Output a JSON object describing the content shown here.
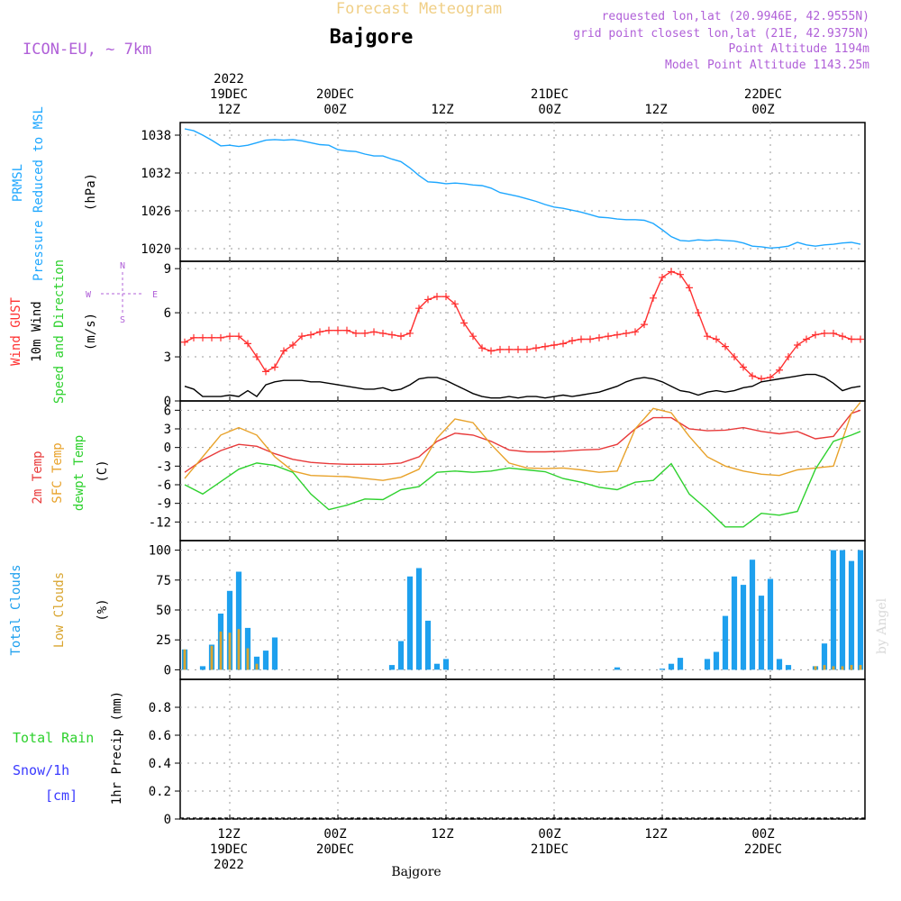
{
  "header": {
    "product": "Forecast Meteogram",
    "location": "Bajgore",
    "model": "ICON-EU, ~ 7km",
    "requested": "requested lon,lat (20.9946E, 42.9555N)",
    "grid_point": "grid point closest lon,lat (21E, 42.9375N)",
    "point_altitude": "Point Altitude 1194m",
    "model_altitude": "Model Point Altitude 1143.25m",
    "credit": "by Angel",
    "footer": "Bajgore"
  },
  "time_axis": {
    "year": "2022",
    "top": [
      {
        "t": 12,
        "hour": "12Z",
        "date": "19DEC",
        "year": "2022"
      },
      {
        "t": 24,
        "hour": "00Z",
        "date": "20DEC"
      },
      {
        "t": 36,
        "hour": "12Z"
      },
      {
        "t": 48,
        "hour": "00Z",
        "date": "21DEC"
      },
      {
        "t": 60,
        "hour": "12Z"
      },
      {
        "t": 72,
        "hour": "00Z",
        "date": "22DEC"
      }
    ],
    "bottom": [
      {
        "t": 12,
        "hour": "12Z",
        "date": "19DEC",
        "year": "2022"
      },
      {
        "t": 24,
        "hour": "00Z",
        "date": "20DEC"
      },
      {
        "t": 36,
        "hour": "12Z"
      },
      {
        "t": 48,
        "hour": "00Z",
        "date": "21DEC"
      },
      {
        "t": 60,
        "hour": "12Z"
      },
      {
        "t": 72,
        "hour": "00Z",
        "date": "22DEC"
      }
    ]
  },
  "chart_data": [
    {
      "type": "line",
      "panel": "pressure",
      "ylabel": [
        "PRMSL",
        "Pressure Reduced to MSL"
      ],
      "units": "(hPa)",
      "ylim": [
        1018,
        1040
      ],
      "yticks": [
        1020,
        1026,
        1032,
        1038
      ],
      "grid": true,
      "x_hours": [
        7,
        8,
        9,
        10,
        11,
        12,
        13,
        14,
        15,
        16,
        17,
        18,
        19,
        20,
        21,
        22,
        23,
        24,
        25,
        26,
        27,
        28,
        29,
        30,
        31,
        32,
        33,
        34,
        35,
        36,
        37,
        38,
        39,
        40,
        41,
        42,
        43,
        44,
        45,
        46,
        47,
        48,
        49,
        50,
        51,
        52,
        53,
        54,
        55,
        56,
        57,
        58,
        59,
        60,
        61,
        62,
        63,
        64,
        65,
        66,
        67,
        68,
        69,
        70,
        71,
        72,
        73,
        74,
        75,
        76,
        77,
        78,
        79,
        80,
        81,
        82
      ],
      "series": [
        {
          "color": "#1ea7ff",
          "values": [
            1039,
            1038.7,
            1038,
            1037.2,
            1036.3,
            1036.4,
            1036.2,
            1036.4,
            1036.8,
            1037.2,
            1037.3,
            1037.2,
            1037.3,
            1037.1,
            1036.8,
            1036.5,
            1036.4,
            1035.7,
            1035.5,
            1035.4,
            1035.0,
            1034.7,
            1034.7,
            1034.2,
            1033.8,
            1032.8,
            1031.6,
            1030.6,
            1030.5,
            1030.3,
            1030.4,
            1030.3,
            1030.1,
            1030.0,
            1029.6,
            1028.9,
            1028.6,
            1028.3,
            1027.9,
            1027.5,
            1027.0,
            1026.6,
            1026.4,
            1026.1,
            1025.8,
            1025.4,
            1025.0,
            1024.9,
            1024.7,
            1024.6,
            1024.6,
            1024.5,
            1024.0,
            1023.0,
            1021.9,
            1021.3,
            1021.2,
            1021.4,
            1021.3,
            1021.4,
            1021.3,
            1021.2,
            1020.9,
            1020.4,
            1020.3,
            1020.1,
            1020.2,
            1020.4,
            1021.0,
            1020.6,
            1020.4,
            1020.6,
            1020.7,
            1020.9,
            1021.0,
            1020.7
          ]
        }
      ]
    },
    {
      "type": "line",
      "panel": "wind",
      "ylabel": [
        "Wind GUST",
        "10m Wind",
        "Speed and Direction"
      ],
      "units": "(m/s)",
      "compass": [
        "N",
        "W",
        "E",
        "S"
      ],
      "ylim": [
        0,
        9.5
      ],
      "yticks": [
        0,
        3,
        6,
        9
      ],
      "grid": true,
      "x_hours": [
        7,
        8,
        9,
        10,
        11,
        12,
        13,
        14,
        15,
        16,
        17,
        18,
        19,
        20,
        21,
        22,
        23,
        24,
        25,
        26,
        27,
        28,
        29,
        30,
        31,
        32,
        33,
        34,
        35,
        36,
        37,
        38,
        39,
        40,
        41,
        42,
        43,
        44,
        45,
        46,
        47,
        48,
        49,
        50,
        51,
        52,
        53,
        54,
        55,
        56,
        57,
        58,
        59,
        60,
        61,
        62,
        63,
        64,
        65,
        66,
        67,
        68,
        69,
        70,
        71,
        72,
        73,
        74,
        75,
        76,
        77,
        78,
        79,
        80,
        81,
        82
      ],
      "series": [
        {
          "name": "Wind GUST",
          "color": "#ff3030",
          "marker": "+",
          "values": [
            4.0,
            4.3,
            4.3,
            4.3,
            4.3,
            4.4,
            4.4,
            3.9,
            3.0,
            2.0,
            2.3,
            3.4,
            3.8,
            4.4,
            4.5,
            4.7,
            4.8,
            4.8,
            4.8,
            4.6,
            4.6,
            4.7,
            4.6,
            4.5,
            4.4,
            4.6,
            6.3,
            6.9,
            7.1,
            7.1,
            6.6,
            5.3,
            4.4,
            3.6,
            3.4,
            3.5,
            3.5,
            3.5,
            3.5,
            3.6,
            3.7,
            3.8,
            3.9,
            4.1,
            4.2,
            4.2,
            4.3,
            4.4,
            4.5,
            4.6,
            4.7,
            5.2,
            7.0,
            8.4,
            8.8,
            8.6,
            7.7,
            6.0,
            4.4,
            4.2,
            3.7,
            3.0,
            2.3,
            1.7,
            1.5,
            1.6,
            2.1,
            3.0,
            3.8,
            4.2,
            4.5,
            4.6,
            4.6,
            4.4,
            4.2,
            4.2
          ]
        },
        {
          "name": "10m Wind",
          "color": "#000000",
          "values": [
            1.0,
            0.8,
            0.3,
            0.3,
            0.3,
            0.4,
            0.3,
            0.7,
            0.3,
            1.1,
            1.3,
            1.4,
            1.4,
            1.4,
            1.3,
            1.3,
            1.2,
            1.1,
            1.0,
            0.9,
            0.8,
            0.8,
            0.9,
            0.7,
            0.8,
            1.1,
            1.5,
            1.6,
            1.6,
            1.4,
            1.1,
            0.8,
            0.5,
            0.3,
            0.2,
            0.2,
            0.3,
            0.2,
            0.3,
            0.3,
            0.2,
            0.3,
            0.4,
            0.3,
            0.4,
            0.5,
            0.6,
            0.8,
            1.0,
            1.3,
            1.5,
            1.6,
            1.5,
            1.3,
            1.0,
            0.7,
            0.6,
            0.4,
            0.6,
            0.7,
            0.6,
            0.7,
            0.9,
            1.0,
            1.3,
            1.4,
            1.5,
            1.6,
            1.7,
            1.8,
            1.8,
            1.6,
            1.2,
            0.7,
            0.9,
            1.0
          ]
        }
      ]
    },
    {
      "type": "line",
      "panel": "temperature",
      "ylabel": [
        "2m Temp",
        "SFC Temp",
        "dewpt Temp"
      ],
      "units": "(C)",
      "ylim": [
        -15,
        7.5
      ],
      "yticks": [
        6,
        3,
        0,
        -3,
        -6,
        -9,
        -12
      ],
      "grid": true,
      "x_hours": [
        7,
        9,
        11,
        13,
        15,
        17,
        19,
        21,
        23,
        25,
        27,
        29,
        31,
        33,
        35,
        37,
        39,
        41,
        43,
        45,
        47,
        49,
        51,
        53,
        55,
        57,
        59,
        61,
        63,
        65,
        67,
        69,
        71,
        73,
        75,
        77,
        79,
        81,
        82
      ],
      "series": [
        {
          "name": "2m Temp",
          "color": "#e83a3a",
          "values": [
            -4.0,
            -2.0,
            -0.5,
            0.5,
            0.2,
            -1.0,
            -1.9,
            -2.4,
            -2.6,
            -2.7,
            -2.7,
            -2.7,
            -2.5,
            -1.5,
            1.0,
            2.3,
            2.0,
            1.0,
            -0.4,
            -0.7,
            -0.7,
            -0.6,
            -0.4,
            -0.3,
            0.5,
            3.0,
            4.8,
            4.8,
            3.0,
            2.7,
            2.8,
            3.2,
            2.6,
            2.2,
            2.6,
            1.4,
            1.8,
            5.5,
            6.0
          ]
        },
        {
          "name": "SFC Temp",
          "color": "#e8a22a",
          "values": [
            -5.0,
            -1.5,
            2.0,
            3.2,
            2.0,
            -1.5,
            -3.8,
            -4.5,
            -4.6,
            -4.7,
            -5.0,
            -5.3,
            -4.8,
            -3.5,
            1.5,
            4.6,
            4.0,
            0.5,
            -2.5,
            -3.3,
            -3.4,
            -3.3,
            -3.6,
            -4.0,
            -3.8,
            3.0,
            6.3,
            5.6,
            1.8,
            -1.5,
            -3.0,
            -3.8,
            -4.3,
            -4.5,
            -3.6,
            -3.3,
            -3.0,
            5.5,
            7.3
          ]
        },
        {
          "name": "dewpt Temp",
          "color": "#2ed12e",
          "values": [
            -6.0,
            -7.5,
            -5.5,
            -3.5,
            -2.5,
            -2.9,
            -4.0,
            -7.5,
            -10.0,
            -9.3,
            -8.3,
            -8.4,
            -6.8,
            -6.3,
            -4.0,
            -3.8,
            -4.0,
            -3.8,
            -3.3,
            -3.6,
            -3.9,
            -5.0,
            -5.6,
            -6.4,
            -6.8,
            -5.6,
            -5.3,
            -2.6,
            -7.5,
            -10.0,
            -12.8,
            -12.8,
            -10.6,
            -10.9,
            -10.3,
            -3.5,
            1.0,
            2.0,
            2.6
          ]
        }
      ]
    },
    {
      "type": "bar",
      "panel": "clouds",
      "ylabel": [
        "Total Clouds",
        "Low Clouds"
      ],
      "units": "(%)",
      "ylim": [
        -8,
        108
      ],
      "yticks": [
        0,
        25,
        50,
        75,
        100
      ],
      "grid": true,
      "x_hours": [
        7,
        8,
        9,
        10,
        11,
        12,
        13,
        14,
        15,
        16,
        17,
        18,
        19,
        20,
        21,
        22,
        23,
        24,
        25,
        26,
        27,
        28,
        29,
        30,
        31,
        32,
        33,
        34,
        35,
        36,
        37,
        38,
        39,
        40,
        41,
        42,
        43,
        44,
        45,
        46,
        47,
        48,
        49,
        50,
        51,
        52,
        53,
        54,
        55,
        56,
        57,
        58,
        59,
        60,
        61,
        62,
        63,
        64,
        65,
        66,
        67,
        68,
        69,
        70,
        71,
        72,
        73,
        74,
        75,
        76,
        77,
        78,
        79,
        80,
        81,
        82
      ],
      "series": [
        {
          "name": "Total Clouds",
          "color": "#1ea0ee",
          "values": [
            17,
            0,
            3,
            21,
            47,
            66,
            82,
            35,
            11,
            16,
            27,
            0,
            0,
            0,
            0,
            0,
            0,
            0,
            0,
            0,
            0,
            0,
            0,
            4,
            24,
            78,
            85,
            41,
            5,
            9,
            0,
            0,
            0,
            0,
            0,
            0,
            0,
            0,
            0,
            0,
            0,
            0,
            0,
            0,
            0,
            0,
            0,
            0,
            2,
            0,
            0,
            0,
            0,
            1,
            5,
            10,
            0,
            0,
            9,
            15,
            45,
            78,
            71,
            92,
            62,
            76,
            9,
            4,
            0,
            0,
            3,
            22,
            100,
            100,
            91,
            100
          ]
        },
        {
          "name": "Low Clouds",
          "color": "#d9a52f",
          "values": [
            17,
            0,
            0,
            20,
            32,
            31,
            34,
            18,
            5,
            0,
            0,
            0,
            0,
            0,
            0,
            0,
            0,
            0,
            0,
            0,
            0,
            0,
            0,
            0,
            0,
            0,
            0,
            0,
            0,
            0,
            0,
            0,
            0,
            0,
            0,
            0,
            0,
            0,
            0,
            0,
            0,
            0,
            0,
            0,
            0,
            0,
            0,
            0,
            0,
            0,
            0,
            0,
            0,
            0,
            0,
            0,
            0,
            0,
            0,
            0,
            0,
            0,
            0,
            0,
            0,
            0,
            0,
            0,
            0,
            0,
            3,
            4,
            3,
            3,
            4,
            4
          ]
        }
      ]
    },
    {
      "type": "bar",
      "panel": "precip",
      "ylabel": [
        "Total Rain",
        "Snow/1h",
        "[cm]"
      ],
      "units": "1hr Precip (mm)",
      "ylim": [
        0,
        1
      ],
      "yticks": [
        0,
        0.2,
        0.4,
        0.6,
        0.8
      ],
      "grid": true,
      "series": [
        {
          "name": "Total Rain",
          "color": "#2ed12e",
          "values": []
        },
        {
          "name": "Snow/1h",
          "color": "#3a3aff",
          "values": []
        }
      ]
    }
  ]
}
